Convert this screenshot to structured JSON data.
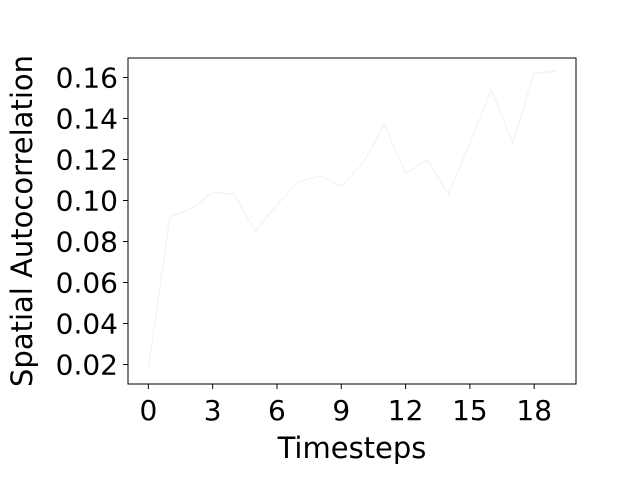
{
  "chart_data": {
    "type": "line",
    "title": "",
    "xlabel": "Timesteps",
    "ylabel": "Spatial Autocorrelation",
    "xlim": [
      -0.95,
      19.95
    ],
    "ylim": [
      0.0105,
      0.1695
    ],
    "xticks": [
      0,
      3,
      6,
      9,
      12,
      15,
      18
    ],
    "xtick_labels": [
      "0",
      "3",
      "6",
      "9",
      "12",
      "15",
      "18"
    ],
    "yticks": [
      0.02,
      0.04,
      0.06,
      0.08,
      0.1,
      0.12,
      0.14,
      0.16
    ],
    "ytick_labels": [
      "0.02",
      "0.04",
      "0.06",
      "0.08",
      "0.10",
      "0.12",
      "0.14",
      "0.16"
    ],
    "grid": false,
    "series": [
      {
        "color": "#f2f2f2",
        "x": [
          0,
          1,
          2,
          3,
          4,
          5,
          6,
          7,
          8,
          9,
          10,
          11,
          12,
          13,
          14,
          15,
          16,
          17,
          18,
          19
        ],
        "values": [
          0.018,
          0.092,
          0.096,
          0.104,
          0.103,
          0.085,
          0.098,
          0.109,
          0.112,
          0.107,
          0.118,
          0.137,
          0.113,
          0.12,
          0.103,
          0.128,
          0.154,
          0.128,
          0.162,
          0.163
        ]
      }
    ]
  }
}
